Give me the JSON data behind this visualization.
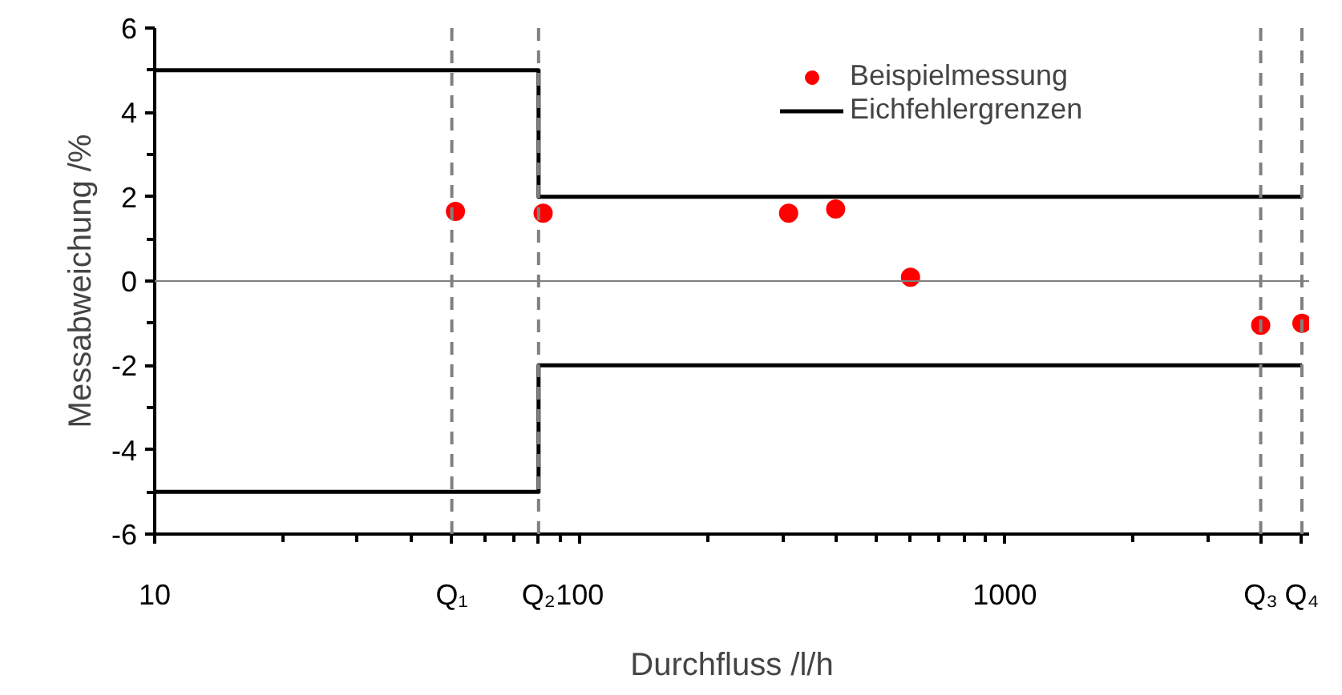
{
  "chart_data": {
    "type": "scatter",
    "xlabel": "Durchfluss /l/h",
    "ylabel": "Messabweichung /%",
    "log": "x",
    "xlim": [
      10,
      5200
    ],
    "ylim": [
      -6,
      6
    ],
    "xticks": [
      10,
      {
        "value": 20,
        "label": null
      },
      {
        "value": 30,
        "label": null
      },
      {
        "value": 40,
        "label": null
      },
      {
        "value": 50,
        "label": null
      },
      {
        "value": 60,
        "label": null
      },
      {
        "value": 70,
        "label": null
      },
      {
        "value": 80,
        "label": null
      },
      {
        "value": 90,
        "label": null
      },
      100,
      {
        "value": 200,
        "label": null
      },
      {
        "value": 300,
        "label": null
      },
      {
        "value": 400,
        "label": null
      },
      {
        "value": 500,
        "label": null
      },
      {
        "value": 600,
        "label": null
      },
      {
        "value": 700,
        "label": null
      },
      {
        "value": 800,
        "label": null
      },
      {
        "value": 900,
        "label": null
      },
      1000,
      {
        "value": 2000,
        "label": null
      },
      {
        "value": 3000,
        "label": null
      },
      {
        "value": 4000,
        "label": null
      },
      {
        "value": 5000,
        "label": null
      }
    ],
    "yticks": [
      -6,
      {
        "value": -5,
        "label": null
      },
      -4,
      {
        "value": -3,
        "label": null
      },
      -2,
      {
        "value": -1,
        "label": null
      },
      0,
      {
        "value": 1,
        "label": null
      },
      2,
      {
        "value": 3,
        "label": null
      },
      4,
      {
        "value": 5,
        "label": null
      },
      6
    ],
    "grid": false,
    "legend": "top right",
    "series": [
      {
        "name": "Beispielmessung",
        "marker": "circle",
        "color": "#ff0000",
        "x": [
          51,
          82,
          310,
          400,
          600,
          4000,
          5000
        ],
        "values": [
          1.65,
          1.61,
          1.61,
          1.71,
          0.09,
          -1.05,
          -1.0
        ]
      },
      {
        "name": "Eichfehlergrenzen",
        "type": "step",
        "marker": "none",
        "color": "#000000",
        "x": [
          10,
          80,
          5000
        ],
        "values": [
          5,
          2,
          2
        ]
      },
      {
        "type": "step",
        "marker": "none",
        "color": "#000000",
        "x": [
          10,
          80,
          5000
        ],
        "values": [
          -5,
          -2,
          -2
        ]
      }
    ],
    "ref_lines": [
      {
        "axis": "y",
        "value": 0,
        "color": "#808080",
        "line_style": "solid"
      },
      {
        "axis": "x",
        "value": 50,
        "label": "Q₁",
        "color": "#808080",
        "line_style": "dashed"
      },
      {
        "axis": "x",
        "value": 80,
        "label": "Q₂",
        "color": "#808080",
        "line_style": "dashed"
      },
      {
        "axis": "x",
        "value": 4000,
        "label": "Q₃",
        "color": "#808080",
        "line_style": "dashed"
      },
      {
        "axis": "x",
        "value": 5000,
        "label": "Q₄",
        "color": "#808080",
        "line_style": "dashed"
      }
    ]
  }
}
